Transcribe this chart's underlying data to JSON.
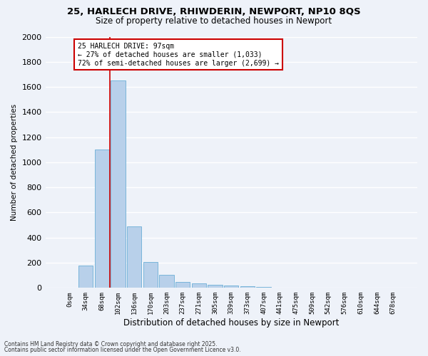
{
  "title_line1": "25, HARLECH DRIVE, RHIWDERIN, NEWPORT, NP10 8QS",
  "title_line2": "Size of property relative to detached houses in Newport",
  "xlabel": "Distribution of detached houses by size in Newport",
  "ylabel": "Number of detached properties",
  "bar_color": "#b8d0ea",
  "bar_edge_color": "#6aaed6",
  "bar_categories": [
    "0sqm",
    "34sqm",
    "68sqm",
    "102sqm",
    "136sqm",
    "170sqm",
    "203sqm",
    "237sqm",
    "271sqm",
    "305sqm",
    "339sqm",
    "373sqm",
    "407sqm",
    "441sqm",
    "475sqm",
    "509sqm",
    "542sqm",
    "576sqm",
    "610sqm",
    "644sqm",
    "678sqm"
  ],
  "bar_values": [
    0,
    175,
    1100,
    1650,
    490,
    205,
    105,
    45,
    35,
    25,
    20,
    15,
    10,
    0,
    0,
    0,
    0,
    0,
    0,
    0,
    0
  ],
  "ylim": [
    0,
    2000
  ],
  "yticks": [
    0,
    200,
    400,
    600,
    800,
    1000,
    1200,
    1400,
    1600,
    1800,
    2000
  ],
  "annotation_text": "25 HARLECH DRIVE: 97sqm\n← 27% of detached houses are smaller (1,033)\n72% of semi-detached houses are larger (2,699) →",
  "annotation_box_color": "#ffffff",
  "annotation_box_edgecolor": "#cc0000",
  "vline_color": "#cc0000",
  "background_color": "#eef2f9",
  "grid_color": "#ffffff",
  "footer_line1": "Contains HM Land Registry data © Crown copyright and database right 2025.",
  "footer_line2": "Contains public sector information licensed under the Open Government Licence v3.0."
}
